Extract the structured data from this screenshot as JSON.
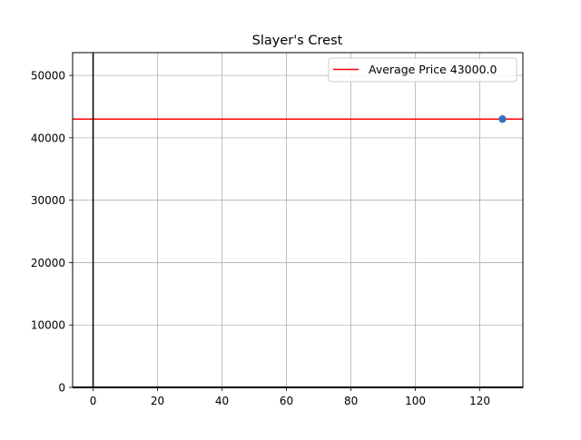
{
  "chart_data": {
    "type": "scatter",
    "title": "Slayer's Crest",
    "xlabel": "",
    "ylabel": "",
    "xlim": [
      -6.35,
      133.35
    ],
    "ylim": [
      0,
      53650
    ],
    "x_ticks": [
      0,
      20,
      40,
      60,
      80,
      100,
      120
    ],
    "y_ticks": [
      0,
      10000,
      20000,
      30000,
      40000,
      50000
    ],
    "grid": true,
    "legend_position": "top-right",
    "series": [
      {
        "values": [
          {
            "x": 127,
            "y": 43000
          }
        ]
      }
    ],
    "reference_lines": [
      {
        "type": "horizontal",
        "y": 43000,
        "label": "Average Price 43000.0",
        "color": "#ff0000"
      },
      {
        "type": "vertical",
        "x": 0,
        "color": "#000000"
      },
      {
        "type": "horizontal",
        "y": 0,
        "color": "#000000"
      }
    ],
    "colors": {
      "point": "#3a6fc0",
      "grid": "#b0b0b0",
      "average_line": "#ff0000"
    }
  }
}
